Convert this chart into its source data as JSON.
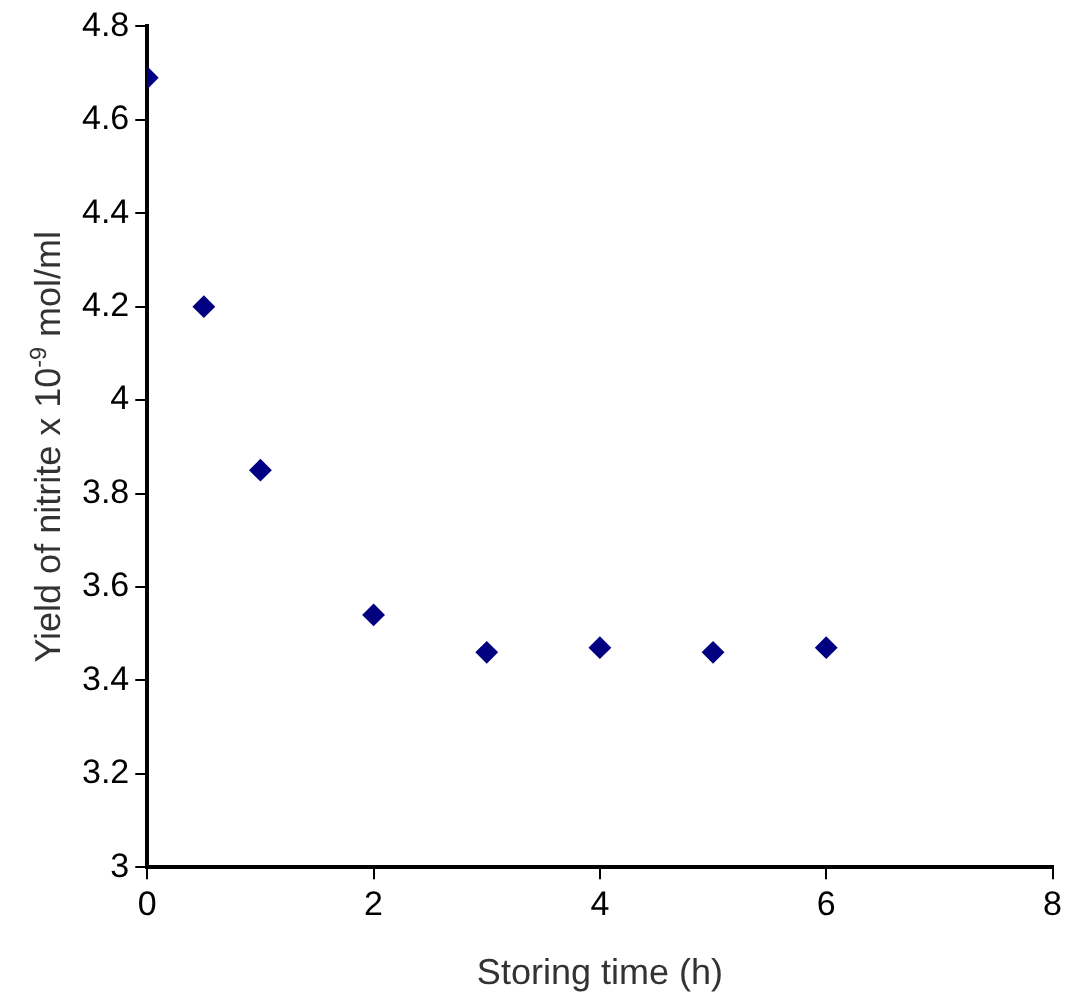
{
  "chart_data": {
    "type": "scatter",
    "xlabel": "Storing time (h)",
    "ylabel": "Yield of nitrite x 10$^{-9}$ mol/ml",
    "x": [
      0,
      0.5,
      1,
      2,
      3,
      4,
      5,
      6
    ],
    "series": [
      {
        "color": "#000080",
        "values": [
          4.69,
          4.2,
          3.85,
          3.54,
          3.46,
          3.47,
          3.46,
          3.47
        ]
      }
    ],
    "xlim": [
      0,
      8
    ],
    "xticks": [
      0,
      2,
      4,
      6,
      8
    ],
    "ylim": [
      3,
      4.8
    ],
    "yticks": [
      3,
      3.2,
      3.4,
      3.6,
      3.8,
      4,
      4.2,
      4.4,
      4.6,
      4.8
    ],
    "marker": "diamond",
    "grid": false,
    "legend": false
  }
}
